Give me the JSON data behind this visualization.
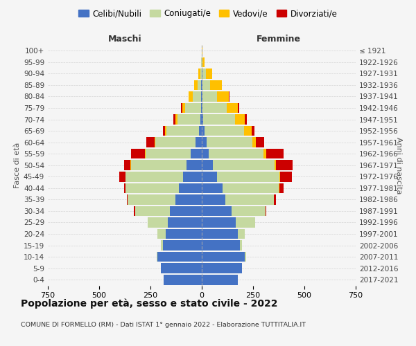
{
  "age_groups": [
    "0-4",
    "5-9",
    "10-14",
    "15-19",
    "20-24",
    "25-29",
    "30-34",
    "35-39",
    "40-44",
    "45-49",
    "50-54",
    "55-59",
    "60-64",
    "65-69",
    "70-74",
    "75-79",
    "80-84",
    "85-89",
    "90-94",
    "95-99",
    "100+"
  ],
  "birth_years": [
    "2017-2021",
    "2012-2016",
    "2007-2011",
    "2002-2006",
    "1997-2001",
    "1992-1996",
    "1987-1991",
    "1982-1986",
    "1977-1981",
    "1972-1976",
    "1967-1971",
    "1962-1966",
    "1957-1961",
    "1952-1956",
    "1947-1951",
    "1942-1946",
    "1937-1941",
    "1932-1936",
    "1927-1931",
    "1922-1926",
    "≤ 1921"
  ],
  "colors": {
    "celibe": "#4472c4",
    "coniugato": "#c5d9a0",
    "vedovo": "#ffc000",
    "divorziato": "#cc0000"
  },
  "males": {
    "celibe": [
      185,
      200,
      215,
      190,
      175,
      165,
      155,
      130,
      110,
      90,
      75,
      55,
      30,
      12,
      8,
      5,
      3,
      2,
      0,
      0,
      0
    ],
    "coniugato": [
      0,
      0,
      5,
      10,
      40,
      100,
      170,
      230,
      260,
      280,
      270,
      220,
      195,
      160,
      110,
      75,
      40,
      18,
      8,
      2,
      0
    ],
    "vedovo": [
      0,
      0,
      0,
      0,
      0,
      0,
      0,
      0,
      0,
      1,
      2,
      3,
      5,
      8,
      12,
      15,
      20,
      18,
      8,
      2,
      0
    ],
    "divorziato": [
      0,
      0,
      0,
      0,
      0,
      0,
      5,
      5,
      10,
      30,
      30,
      65,
      40,
      10,
      8,
      5,
      2,
      0,
      0,
      0,
      0
    ]
  },
  "females": {
    "nubile": [
      175,
      195,
      210,
      185,
      175,
      165,
      145,
      115,
      100,
      75,
      55,
      35,
      25,
      12,
      8,
      5,
      3,
      2,
      2,
      0,
      0
    ],
    "coniugata": [
      0,
      0,
      5,
      10,
      35,
      95,
      165,
      235,
      275,
      305,
      300,
      265,
      220,
      195,
      155,
      115,
      70,
      40,
      18,
      5,
      0
    ],
    "vedova": [
      0,
      0,
      0,
      0,
      0,
      0,
      0,
      0,
      2,
      3,
      8,
      15,
      20,
      35,
      45,
      55,
      60,
      55,
      30,
      10,
      2
    ],
    "divorziata": [
      0,
      0,
      0,
      0,
      0,
      0,
      5,
      10,
      20,
      55,
      80,
      85,
      40,
      15,
      10,
      8,
      2,
      0,
      0,
      0,
      0
    ]
  },
  "xlim": 750,
  "title": "Popolazione per età, sesso e stato civile - 2022",
  "subtitle": "COMUNE DI FORMELLO (RM) - Dati ISTAT 1° gennaio 2022 - Elaborazione TUTTITALIA.IT",
  "ylabel_left": "Fasce di età",
  "ylabel_right": "Anni di nascita",
  "xlabel_left": "Maschi",
  "xlabel_right": "Femmine",
  "legend_labels": [
    "Celibi/Nubili",
    "Coniugati/e",
    "Vedovi/e",
    "Divorziati/e"
  ],
  "background_color": "#f5f5f5",
  "grid_color": "#cccccc"
}
